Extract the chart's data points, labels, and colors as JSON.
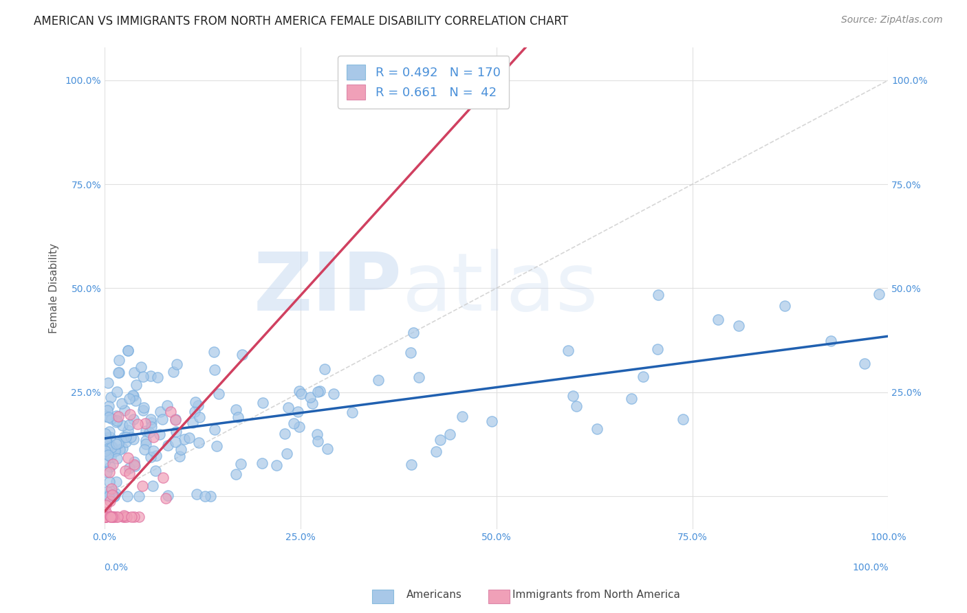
{
  "title": "AMERICAN VS IMMIGRANTS FROM NORTH AMERICA FEMALE DISABILITY CORRELATION CHART",
  "source": "Source: ZipAtlas.com",
  "ylabel": "Female Disability",
  "xlim": [
    0,
    1
  ],
  "ylim": [
    -0.08,
    1.08
  ],
  "ytick_labels": [
    "",
    "25.0%",
    "50.0%",
    "75.0%",
    "100.0%"
  ],
  "ytick_values": [
    0,
    0.25,
    0.5,
    0.75,
    1.0
  ],
  "xtick_values": [
    0,
    0.25,
    0.5,
    0.75,
    1.0
  ],
  "american_color": "#a8c8e8",
  "immigrant_color": "#f0a0b8",
  "american_R": 0.492,
  "american_N": 170,
  "immigrant_R": 0.661,
  "immigrant_N": 42,
  "american_line_color": "#2060b0",
  "immigrant_line_color": "#d04060",
  "diagonal_color": "#cccccc",
  "legend_american_color": "#a8c8e8",
  "legend_immigrant_color": "#f0a0b8",
  "watermark_zip": "ZIP",
  "watermark_atlas": "atlas",
  "background_color": "#ffffff",
  "grid_color": "#dddddd",
  "title_fontsize": 12,
  "source_fontsize": 10,
  "label_fontsize": 11,
  "tick_fontsize": 10,
  "legend_fontsize": 13,
  "tick_color": "#4a90d9"
}
